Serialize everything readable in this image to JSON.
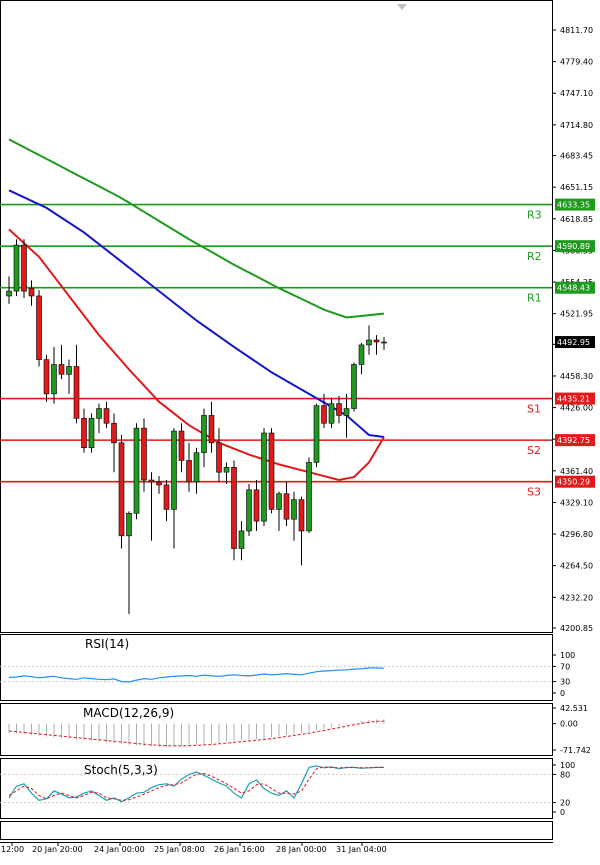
{
  "chart_data": {
    "type": "candlestick",
    "symbol_price_axis": {
      "ylim": [
        4200.85,
        4826.0
      ],
      "ticks": [
        "4811.70",
        "4779.40",
        "4747.10",
        "4714.80",
        "4683.45",
        "4651.15",
        "4618.85",
        "4586.55",
        "4554.25",
        "4521.95",
        "4490.60",
        "4458.30",
        "4426.00",
        "4393.70",
        "4361.40",
        "4329.10",
        "4296.80",
        "4264.50",
        "4232.20",
        "4200.85"
      ]
    },
    "x_tick_labels": [
      "12:00",
      "20 Jan 20:00",
      "24 Jan 00:00",
      "25 Jan 08:00",
      "26 Jan 16:00",
      "28 Jan 00:00",
      "31 Jan 04:00"
    ],
    "candles": [
      {
        "o": 4540,
        "h": 4560,
        "l": 4532,
        "c": 4545
      },
      {
        "o": 4545,
        "h": 4598,
        "l": 4540,
        "c": 4592
      },
      {
        "o": 4592,
        "h": 4598,
        "l": 4538,
        "c": 4545
      },
      {
        "o": 4548,
        "h": 4556,
        "l": 4530,
        "c": 4540
      },
      {
        "o": 4540,
        "h": 4546,
        "l": 4468,
        "c": 4475
      },
      {
        "o": 4475,
        "h": 4480,
        "l": 4432,
        "c": 4440
      },
      {
        "o": 4440,
        "h": 4488,
        "l": 4430,
        "c": 4470
      },
      {
        "o": 4470,
        "h": 4490,
        "l": 4455,
        "c": 4460
      },
      {
        "o": 4460,
        "h": 4475,
        "l": 4440,
        "c": 4468
      },
      {
        "o": 4468,
        "h": 4490,
        "l": 4410,
        "c": 4415
      },
      {
        "o": 4415,
        "h": 4425,
        "l": 4380,
        "c": 4385
      },
      {
        "o": 4385,
        "h": 4420,
        "l": 4380,
        "c": 4415
      },
      {
        "o": 4415,
        "h": 4430,
        "l": 4400,
        "c": 4425
      },
      {
        "o": 4425,
        "h": 4432,
        "l": 4405,
        "c": 4410
      },
      {
        "o": 4410,
        "h": 4420,
        "l": 4360,
        "c": 4390
      },
      {
        "o": 4390,
        "h": 4398,
        "l": 4282,
        "c": 4295
      },
      {
        "o": 4295,
        "h": 4320,
        "l": 4215,
        "c": 4318
      },
      {
        "o": 4318,
        "h": 4410,
        "l": 4312,
        "c": 4405
      },
      {
        "o": 4405,
        "h": 4415,
        "l": 4340,
        "c": 4352
      },
      {
        "o": 4352,
        "h": 4360,
        "l": 4290,
        "c": 4350
      },
      {
        "o": 4350,
        "h": 4356,
        "l": 4338,
        "c": 4347
      },
      {
        "o": 4347,
        "h": 4352,
        "l": 4310,
        "c": 4322
      },
      {
        "o": 4322,
        "h": 4405,
        "l": 4282,
        "c": 4402
      },
      {
        "o": 4402,
        "h": 4410,
        "l": 4360,
        "c": 4372
      },
      {
        "o": 4372,
        "h": 4390,
        "l": 4340,
        "c": 4350
      },
      {
        "o": 4350,
        "h": 4385,
        "l": 4338,
        "c": 4380
      },
      {
        "o": 4380,
        "h": 4425,
        "l": 4365,
        "c": 4418
      },
      {
        "o": 4418,
        "h": 4432,
        "l": 4380,
        "c": 4390
      },
      {
        "o": 4390,
        "h": 4405,
        "l": 4350,
        "c": 4360
      },
      {
        "o": 4360,
        "h": 4370,
        "l": 4348,
        "c": 4365
      },
      {
        "o": 4365,
        "h": 4372,
        "l": 4270,
        "c": 4282
      },
      {
        "o": 4282,
        "h": 4310,
        "l": 4270,
        "c": 4300
      },
      {
        "o": 4300,
        "h": 4348,
        "l": 4295,
        "c": 4342
      },
      {
        "o": 4342,
        "h": 4352,
        "l": 4300,
        "c": 4310
      },
      {
        "o": 4310,
        "h": 4405,
        "l": 4305,
        "c": 4400
      },
      {
        "o": 4400,
        "h": 4405,
        "l": 4318,
        "c": 4322
      },
      {
        "o": 4322,
        "h": 4340,
        "l": 4300,
        "c": 4338
      },
      {
        "o": 4338,
        "h": 4350,
        "l": 4305,
        "c": 4312
      },
      {
        "o": 4312,
        "h": 4340,
        "l": 4290,
        "c": 4332
      },
      {
        "o": 4332,
        "h": 4335,
        "l": 4265,
        "c": 4300
      },
      {
        "o": 4300,
        "h": 4375,
        "l": 4298,
        "c": 4370
      },
      {
        "o": 4370,
        "h": 4430,
        "l": 4365,
        "c": 4428
      },
      {
        "o": 4428,
        "h": 4440,
        "l": 4405,
        "c": 4410
      },
      {
        "o": 4410,
        "h": 4436,
        "l": 4405,
        "c": 4430
      },
      {
        "o": 4430,
        "h": 4438,
        "l": 4410,
        "c": 4418
      },
      {
        "o": 4418,
        "h": 4440,
        "l": 4395,
        "c": 4425
      },
      {
        "o": 4425,
        "h": 4472,
        "l": 4422,
        "c": 4470
      },
      {
        "o": 4470,
        "h": 4492,
        "l": 4460,
        "c": 4490
      },
      {
        "o": 4490,
        "h": 4510,
        "l": 4480,
        "c": 4495
      },
      {
        "o": 4495,
        "h": 4500,
        "l": 4480,
        "c": 4493
      },
      {
        "o": 4493,
        "h": 4498,
        "l": 4485,
        "c": 4493
      }
    ],
    "moving_averages": [
      {
        "color": "#1f9a1f",
        "values": [
          4700,
          4688,
          4676,
          4664,
          4652,
          4640,
          4626,
          4612,
          4598,
          4585,
          4572,
          4560,
          4548,
          4537,
          4526,
          4518,
          4522
        ]
      },
      {
        "color": "#1414cc",
        "values": [
          4648,
          4630,
          4605,
          4575,
          4545,
          4515,
          4488,
          4462,
          4440,
          4418,
          4398,
          4396
        ]
      },
      {
        "color": "#e01a1a",
        "values": [
          4608,
          4580,
          4540,
          4500,
          4465,
          4432,
          4408,
          4390,
          4378,
          4368,
          4360,
          4352,
          4355,
          4370,
          4396
        ]
      }
    ],
    "ma_anchor_candles": [
      [
        0,
        3,
        6,
        9,
        12,
        15,
        18,
        21,
        24,
        27,
        30,
        33,
        36,
        39,
        42,
        45,
        50
      ],
      [
        0,
        5,
        10,
        15,
        20,
        25,
        30,
        35,
        40,
        45,
        48,
        50
      ],
      [
        0,
        4,
        8,
        12,
        16,
        20,
        24,
        28,
        32,
        36,
        40,
        44,
        46,
        48,
        50
      ]
    ],
    "levels": [
      {
        "name": "R3",
        "value": 4633.35,
        "label": "4633.35",
        "color": "#1f9a1f"
      },
      {
        "name": "R2",
        "value": 4590.89,
        "label": "4590.89",
        "color": "#1f9a1f"
      },
      {
        "name": "R1",
        "value": 4548.43,
        "label": "4548.43",
        "color": "#1f9a1f"
      },
      {
        "name": "S1",
        "value": 4435.21,
        "label": "4435.21",
        "color": "#e01a1a"
      },
      {
        "name": "S2",
        "value": 4392.75,
        "label": "4392.75",
        "color": "#e01a1a"
      },
      {
        "name": "S3",
        "value": 4350.29,
        "label": "4350.29",
        "color": "#e01a1a"
      }
    ],
    "last_price": {
      "value": 4492.95,
      "label": "4492.95"
    },
    "rsi": {
      "title": "RSI(14)",
      "ylim": [
        0,
        100
      ],
      "ticks": [
        "100",
        "70",
        "30",
        "0"
      ],
      "values": [
        41,
        42,
        45,
        43,
        40,
        42,
        44,
        40,
        38,
        36,
        40,
        38,
        36,
        35,
        37,
        30,
        29,
        34,
        38,
        36,
        40,
        42,
        44,
        45,
        46,
        44,
        47,
        45,
        44,
        46,
        48,
        46,
        45,
        47,
        50,
        48,
        49,
        51,
        49,
        48,
        52,
        56,
        58,
        59,
        60,
        61,
        63,
        64,
        66,
        66,
        65
      ]
    },
    "macd": {
      "title": "MACD(12,26,9)",
      "ylim": [
        -71.742,
        42.531
      ],
      "ticks": [
        "42.531",
        "0.00",
        "-71.742"
      ],
      "histogram": [
        -25,
        -27,
        -29,
        -31,
        -33,
        -35,
        -37,
        -39,
        -41,
        -43,
        -45,
        -47,
        -49,
        -51,
        -53,
        -55,
        -57,
        -59,
        -61,
        -62,
        -63,
        -63,
        -62,
        -61,
        -60,
        -58,
        -56,
        -54,
        -52,
        -50,
        -48,
        -46,
        -44,
        -42,
        -40,
        -37,
        -34,
        -31,
        -28,
        -25,
        -22,
        -18,
        -14,
        -10,
        -6,
        -2,
        2,
        6,
        10,
        12,
        12
      ],
      "signal": [
        -20,
        -22,
        -24,
        -26,
        -28,
        -30,
        -32,
        -34,
        -36,
        -38,
        -40,
        -42,
        -44,
        -46,
        -48,
        -50,
        -52,
        -54,
        -56,
        -58,
        -59,
        -60,
        -60,
        -60,
        -60,
        -59,
        -58,
        -57,
        -55,
        -53,
        -51,
        -49,
        -47,
        -45,
        -43,
        -41,
        -38,
        -35,
        -32,
        -29,
        -26,
        -22,
        -19,
        -15,
        -11,
        -7,
        -3,
        1,
        4,
        6,
        7
      ]
    },
    "stoch": {
      "title": "Stoch(5,3,3)",
      "ylim": [
        0,
        100
      ],
      "ticks": [
        "100",
        "80",
        "20",
        "0"
      ],
      "main": [
        30,
        55,
        60,
        40,
        25,
        28,
        45,
        38,
        30,
        32,
        40,
        45,
        35,
        25,
        30,
        22,
        30,
        40,
        42,
        52,
        58,
        60,
        55,
        70,
        80,
        85,
        78,
        70,
        62,
        55,
        40,
        30,
        60,
        68,
        50,
        40,
        35,
        45,
        30,
        60,
        95,
        98,
        94,
        96,
        92,
        95,
        95,
        93,
        94,
        95,
        95
      ],
      "signal": [
        35,
        45,
        55,
        50,
        35,
        28,
        35,
        40,
        35,
        30,
        35,
        42,
        40,
        30,
        28,
        25,
        26,
        32,
        38,
        45,
        52,
        57,
        58,
        62,
        72,
        80,
        82,
        76,
        68,
        60,
        50,
        40,
        45,
        58,
        60,
        50,
        40,
        40,
        38,
        45,
        70,
        92,
        96,
        95,
        94,
        94,
        95,
        94,
        94,
        95,
        95
      ]
    }
  }
}
